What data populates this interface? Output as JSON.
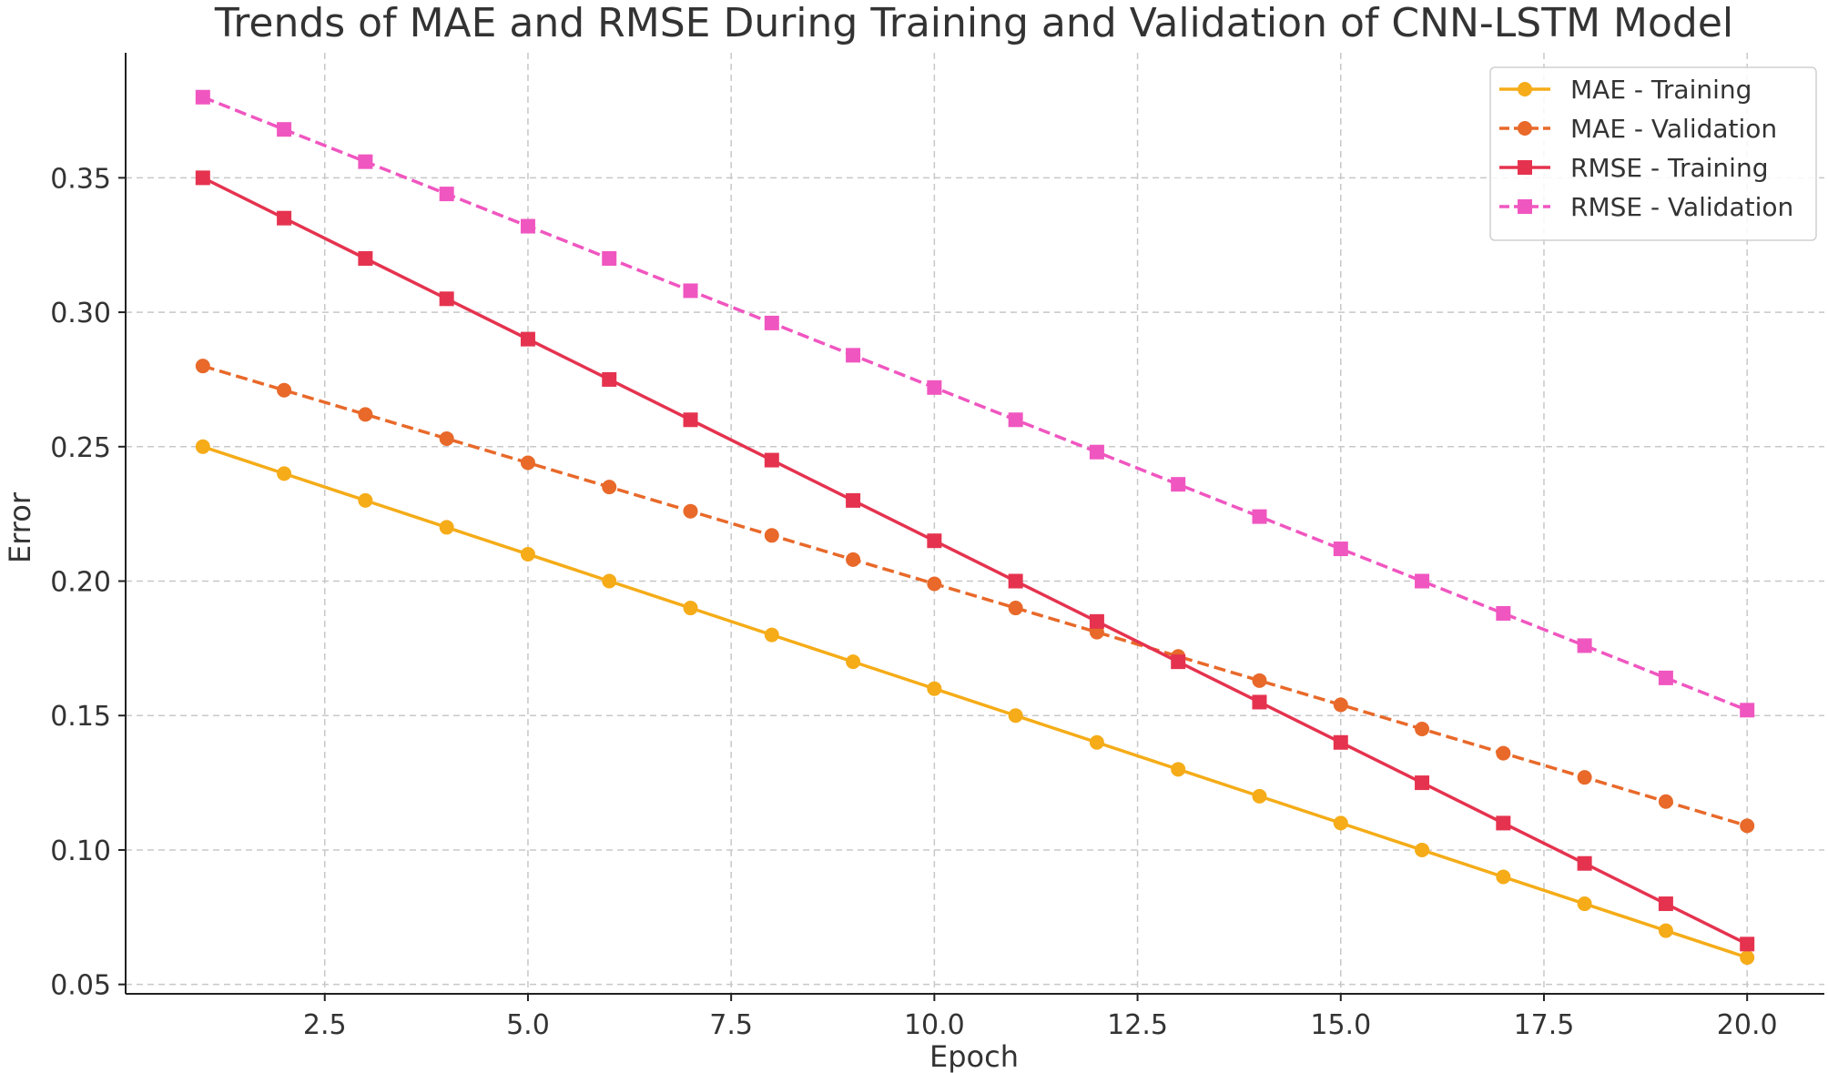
{
  "chart_data": {
    "type": "line",
    "title": "Trends of MAE and RMSE During Training and Validation of CNN-LSTM Model",
    "xlabel": "Epoch",
    "ylabel": "Error",
    "xlim": [
      0.05,
      20.95
    ],
    "ylim": [
      0.0465,
      0.3965
    ],
    "xticks": [
      2.5,
      5.0,
      7.5,
      10.0,
      12.5,
      15.0,
      17.5,
      20.0
    ],
    "xtick_labels": [
      "2.5",
      "5.0",
      "7.5",
      "10.0",
      "12.5",
      "15.0",
      "17.5",
      "20.0"
    ],
    "yticks": [
      0.05,
      0.1,
      0.15,
      0.2,
      0.25,
      0.3,
      0.35
    ],
    "ytick_labels": [
      "0.05",
      "0.10",
      "0.15",
      "0.20",
      "0.25",
      "0.30",
      "0.35"
    ],
    "grid": true,
    "legend_position": "top-right",
    "x": [
      1,
      2,
      3,
      4,
      5,
      6,
      7,
      8,
      9,
      10,
      11,
      12,
      13,
      14,
      15,
      16,
      17,
      18,
      19,
      20
    ],
    "series": [
      {
        "key": "mae-training",
        "name": "MAE - Training",
        "color": "#f5ac18",
        "dash": "solid",
        "marker": "circle",
        "values": [
          0.25,
          0.24,
          0.23,
          0.22,
          0.21,
          0.2,
          0.19,
          0.18,
          0.17,
          0.16,
          0.15,
          0.14,
          0.13,
          0.12,
          0.11,
          0.1,
          0.09,
          0.08,
          0.07,
          0.06
        ]
      },
      {
        "key": "mae-validation",
        "name": "MAE - Validation",
        "color": "#e8692a",
        "dash": "dashed",
        "marker": "circle",
        "values": [
          0.28,
          0.271,
          0.262,
          0.253,
          0.244,
          0.235,
          0.226,
          0.217,
          0.208,
          0.199,
          0.19,
          0.181,
          0.172,
          0.163,
          0.154,
          0.145,
          0.136,
          0.127,
          0.118,
          0.109
        ]
      },
      {
        "key": "rmse-training",
        "name": "RMSE - Training",
        "color": "#e5334f",
        "dash": "solid",
        "marker": "square",
        "values": [
          0.35,
          0.335,
          0.32,
          0.305,
          0.29,
          0.275,
          0.26,
          0.245,
          0.23,
          0.215,
          0.2,
          0.185,
          0.17,
          0.155,
          0.14,
          0.125,
          0.11,
          0.095,
          0.08,
          0.065
        ]
      },
      {
        "key": "rmse-validation",
        "name": "RMSE - Validation",
        "color": "#f056c0",
        "dash": "dashed",
        "marker": "square",
        "values": [
          0.38,
          0.368,
          0.356,
          0.344,
          0.332,
          0.32,
          0.308,
          0.296,
          0.284,
          0.272,
          0.26,
          0.248,
          0.236,
          0.224,
          0.212,
          0.2,
          0.188,
          0.176,
          0.164,
          0.152
        ]
      }
    ]
  }
}
